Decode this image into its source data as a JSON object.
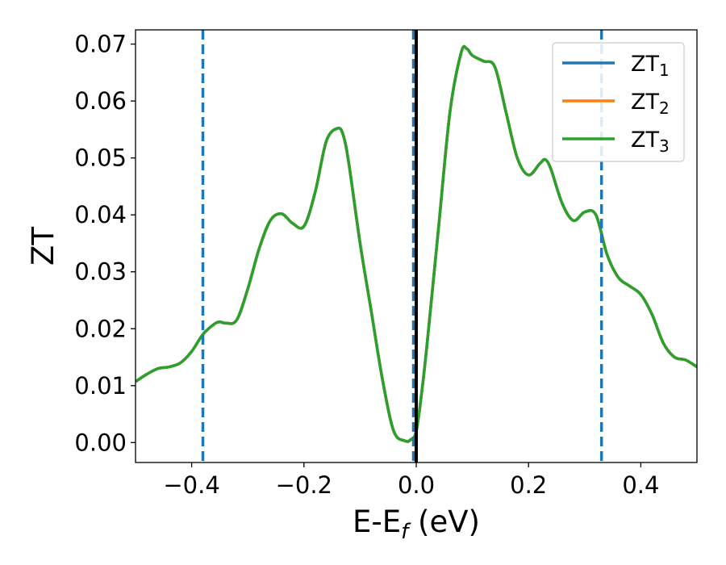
{
  "chart_data": {
    "type": "line",
    "xlabel": "E-E",
    "xlabel_sub": "f",
    "xlabel_unit": " (eV)",
    "ylabel": "ZT",
    "xlim": [
      -0.5,
      0.5
    ],
    "ylim": [
      -0.0035,
      0.0725
    ],
    "xticks": [
      -0.4,
      -0.2,
      0.0,
      0.2,
      0.4
    ],
    "xtick_labels": [
      "−0.4",
      "−0.2",
      "0.0",
      "0.2",
      "0.4"
    ],
    "yticks": [
      0.0,
      0.01,
      0.02,
      0.03,
      0.04,
      0.05,
      0.06,
      0.07
    ],
    "ytick_labels": [
      "0.00",
      "0.01",
      "0.02",
      "0.03",
      "0.04",
      "0.05",
      "0.06",
      "0.07"
    ],
    "legend_position": "top-right",
    "series": [
      {
        "name": "ZT",
        "sub": "1",
        "color": "#1f77b4"
      },
      {
        "name": "ZT",
        "sub": "2",
        "color": "#ff7f0e"
      },
      {
        "name": "ZT",
        "sub": "3",
        "color": "#2ca02c"
      }
    ],
    "x": [
      -0.5,
      -0.48,
      -0.46,
      -0.44,
      -0.42,
      -0.4,
      -0.38,
      -0.36,
      -0.35,
      -0.34,
      -0.32,
      -0.3,
      -0.28,
      -0.26,
      -0.24,
      -0.22,
      -0.2,
      -0.18,
      -0.16,
      -0.14,
      -0.13,
      -0.12,
      -0.1,
      -0.08,
      -0.06,
      -0.04,
      -0.02,
      -0.01,
      0.0,
      0.01,
      0.02,
      0.04,
      0.06,
      0.08,
      0.09,
      0.1,
      0.12,
      0.14,
      0.16,
      0.18,
      0.2,
      0.22,
      0.23,
      0.24,
      0.26,
      0.28,
      0.3,
      0.32,
      0.34,
      0.36,
      0.38,
      0.4,
      0.42,
      0.44,
      0.46,
      0.48,
      0.5
    ],
    "y": [
      0.0107,
      0.012,
      0.013,
      0.0133,
      0.014,
      0.016,
      0.019,
      0.0208,
      0.0212,
      0.021,
      0.0215,
      0.027,
      0.034,
      0.039,
      0.0402,
      0.0385,
      0.038,
      0.044,
      0.053,
      0.0552,
      0.054,
      0.049,
      0.035,
      0.023,
      0.011,
      0.002,
      0.0003,
      0.0005,
      0.002,
      0.009,
      0.018,
      0.038,
      0.058,
      0.0685,
      0.0692,
      0.068,
      0.067,
      0.066,
      0.058,
      0.05,
      0.047,
      0.049,
      0.0497,
      0.048,
      0.042,
      0.039,
      0.0405,
      0.04,
      0.033,
      0.029,
      0.0275,
      0.026,
      0.0225,
      0.0175,
      0.015,
      0.0145,
      0.0133
    ],
    "vlines": [
      {
        "x": -0.38,
        "style": "dashed",
        "color": "#1f77b4"
      },
      {
        "x": -0.005,
        "style": "dashed",
        "color": "#1f77b4"
      },
      {
        "x": 0.0,
        "style": "solid",
        "color": "#000000"
      },
      {
        "x": 0.33,
        "style": "dashed",
        "color": "#1f77b4"
      }
    ]
  }
}
